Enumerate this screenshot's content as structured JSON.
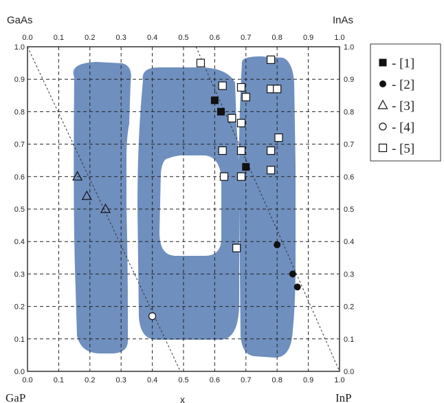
{
  "corners": {
    "top_left": "GaAs",
    "top_right": "InAs",
    "bottom_left": "GaP",
    "bottom_right": "InP"
  },
  "colors": {
    "miscibility_gap": "#6f8fbe",
    "marker": "#111111"
  },
  "chart_data": {
    "type": "scatter",
    "title": "",
    "xlabel": "x",
    "ylabel": "",
    "xlim": [
      0.0,
      1.0
    ],
    "ylim": [
      0.0,
      1.0
    ],
    "grid": true,
    "legend_position": "right",
    "bottom_x_ticks": [
      "0.0",
      "0.1",
      "0.2",
      "0.3",
      "0.4",
      "0.5",
      "0.6",
      "0.7",
      "0.8",
      "0.9",
      "1.0"
    ],
    "top_x_ticks": [
      "0.0",
      "0.1",
      "0.2",
      "0.3",
      "0.4",
      "0.5",
      "0.6",
      "0.7",
      "0.8",
      "0.9",
      "1.0"
    ],
    "left_y_ticks": [
      "0.0",
      "0.1",
      "0.2",
      "0.3",
      "0.4",
      "0.5",
      "0.6",
      "0.7",
      "0.8",
      "0.9",
      "1.0"
    ],
    "right_y_ticks": [
      "0.0",
      "0.1",
      "0.2",
      "0.3",
      "0.4",
      "0.5",
      "0.6",
      "0.7",
      "0.8",
      "0.9",
      "1.0"
    ],
    "guide_lines": [
      {
        "from": [
          0.0,
          1.0
        ],
        "to": [
          0.49,
          0.0
        ]
      },
      {
        "from": [
          0.54,
          1.0
        ],
        "to": [
          1.0,
          0.0
        ]
      }
    ],
    "series": [
      {
        "name": "- [1]",
        "marker": "filled-square",
        "points": [
          [
            0.6,
            0.835
          ],
          [
            0.62,
            0.8
          ],
          [
            0.7,
            0.63
          ]
        ]
      },
      {
        "name": "- [2]",
        "marker": "filled-circle",
        "points": [
          [
            0.8,
            0.39
          ],
          [
            0.85,
            0.3
          ],
          [
            0.865,
            0.26
          ]
        ]
      },
      {
        "name": "- [3]",
        "marker": "open-triangle",
        "points": [
          [
            0.16,
            0.6
          ],
          [
            0.19,
            0.54
          ],
          [
            0.25,
            0.5
          ]
        ]
      },
      {
        "name": "- [4]",
        "marker": "open-circle",
        "points": [
          [
            0.4,
            0.17
          ]
        ]
      },
      {
        "name": "- [5]",
        "marker": "open-square",
        "points": [
          [
            0.555,
            0.95
          ],
          [
            0.625,
            0.88
          ],
          [
            0.655,
            0.78
          ],
          [
            0.685,
            0.875
          ],
          [
            0.7,
            0.845
          ],
          [
            0.685,
            0.765
          ],
          [
            0.625,
            0.68
          ],
          [
            0.685,
            0.68
          ],
          [
            0.63,
            0.6
          ],
          [
            0.685,
            0.6
          ],
          [
            0.78,
            0.96
          ],
          [
            0.78,
            0.87
          ],
          [
            0.8,
            0.87
          ],
          [
            0.805,
            0.72
          ],
          [
            0.78,
            0.68
          ],
          [
            0.78,
            0.62
          ],
          [
            0.67,
            0.38
          ]
        ]
      }
    ]
  }
}
